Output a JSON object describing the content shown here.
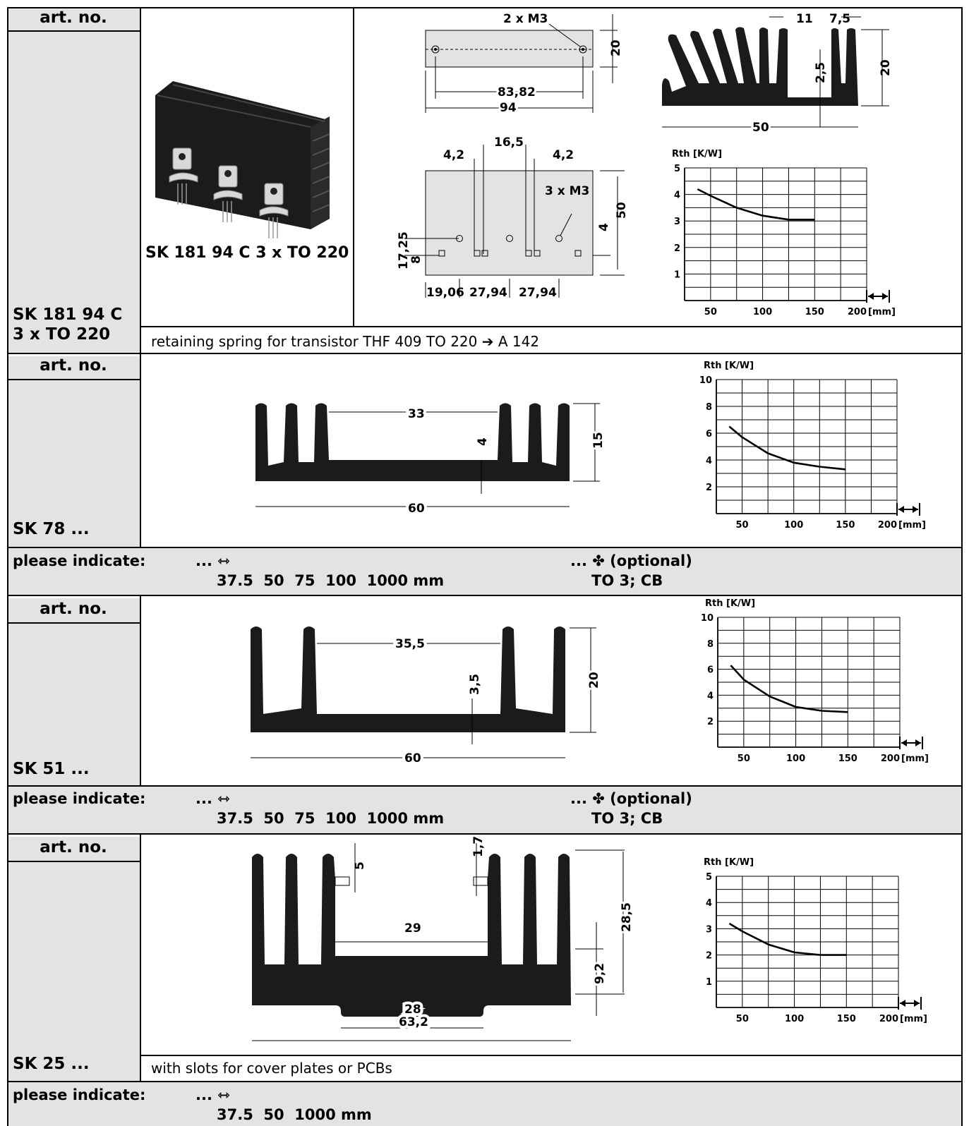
{
  "sections": [
    {
      "art_no_label": "art. no.",
      "article": "SK 181 94 C 3 x TO 220",
      "photo_caption": "SK 181 94 C 3 x TO 220",
      "note": "retaining spring for transistor THF 409 TO 220 ➔ A 142",
      "dims": {
        "holes_top": "2 x M3",
        "hole_pitch": "83,82",
        "length": "94",
        "height": "20",
        "fin_gap": "11",
        "fin_pitch": "7,5",
        "base": "2,5",
        "profile_h": "20",
        "width": "50",
        "w1": "4,2",
        "w2": "16,5",
        "w3": "4,2",
        "holes_mid": "3 x M3",
        "plate_h": "50",
        "small": "4",
        "off1": "17,25",
        "off2": "8",
        "x1": "19,06",
        "x2": "27,94",
        "x3": "27,94"
      }
    },
    {
      "art_no_label": "art. no.",
      "article": "SK 78 ...",
      "dims": {
        "gap": "33",
        "base": "4",
        "height": "15",
        "width": "60"
      },
      "please": {
        "label": "please indicate:",
        "len_prefix": "...",
        "lengths": "37.5  50  75  100  1000 mm",
        "opt_prefix": "...",
        "opt_label": "(optional)",
        "opt_value": "TO 3; CB"
      }
    },
    {
      "art_no_label": "art. no.",
      "article": "SK 51 ...",
      "dims": {
        "gap": "35,5",
        "base": "3,5",
        "height": "20",
        "width": "60"
      },
      "please": {
        "label": "please indicate:",
        "len_prefix": "...",
        "lengths": "37.5  50  75  100  1000 mm",
        "opt_prefix": "...",
        "opt_label": "(optional)",
        "opt_value": "TO 3; CB"
      }
    },
    {
      "art_no_label": "art. no.",
      "article": "SK 25 ...",
      "note": "with slots for cover plates or PCBs",
      "dims": {
        "slot": "5",
        "slot_w": "1,7",
        "gap": "29",
        "total_h": "28,5",
        "base_h": "9,2",
        "bottom": "28",
        "width": "63,2"
      },
      "please": {
        "label": "please indicate:",
        "len_prefix": "...",
        "lengths": "37.5  50  1000 mm"
      }
    }
  ],
  "chart_data": [
    {
      "type": "line",
      "ylabel": "Rth [K/W]",
      "xlabel": "[mm]",
      "x_ticks": [
        "50",
        "100",
        "150",
        "200"
      ],
      "y_ticks": [
        "1",
        "2",
        "3",
        "4",
        "5"
      ],
      "xlim": [
        25,
        200
      ],
      "ylim": [
        0,
        5
      ],
      "series": [
        {
          "x": [
            37.5,
            50,
            75,
            100,
            125,
            150
          ],
          "y": [
            4.2,
            3.95,
            3.5,
            3.2,
            3.05,
            3.05
          ]
        }
      ]
    },
    {
      "type": "line",
      "ylabel": "Rth [K/W]",
      "xlabel": "[mm]",
      "x_ticks": [
        "50",
        "100",
        "150",
        "200"
      ],
      "y_ticks": [
        "2",
        "4",
        "6",
        "8",
        "10"
      ],
      "xlim": [
        25,
        200
      ],
      "ylim": [
        0,
        10
      ],
      "series": [
        {
          "x": [
            37.5,
            50,
            75,
            100,
            125,
            150
          ],
          "y": [
            6.5,
            5.7,
            4.5,
            3.8,
            3.5,
            3.3
          ]
        }
      ]
    },
    {
      "type": "line",
      "ylabel": "Rth [K/W]",
      "xlabel": "[mm]",
      "x_ticks": [
        "50",
        "100",
        "150",
        "200"
      ],
      "y_ticks": [
        "2",
        "4",
        "6",
        "8",
        "10"
      ],
      "xlim": [
        25,
        200
      ],
      "ylim": [
        0,
        10
      ],
      "series": [
        {
          "x": [
            37.5,
            50,
            75,
            100,
            125,
            150
          ],
          "y": [
            6.3,
            5.2,
            3.9,
            3.1,
            2.8,
            2.7
          ]
        }
      ]
    },
    {
      "type": "line",
      "ylabel": "Rth [K/W]",
      "xlabel": "[mm]",
      "x_ticks": [
        "50",
        "100",
        "150",
        "200"
      ],
      "y_ticks": [
        "1",
        "2",
        "3",
        "4",
        "5"
      ],
      "xlim": [
        25,
        200
      ],
      "ylim": [
        0,
        5
      ],
      "series": [
        {
          "x": [
            37.5,
            50,
            75,
            100,
            125,
            150
          ],
          "y": [
            3.2,
            2.9,
            2.4,
            2.1,
            2.0,
            2.0
          ]
        }
      ]
    }
  ]
}
